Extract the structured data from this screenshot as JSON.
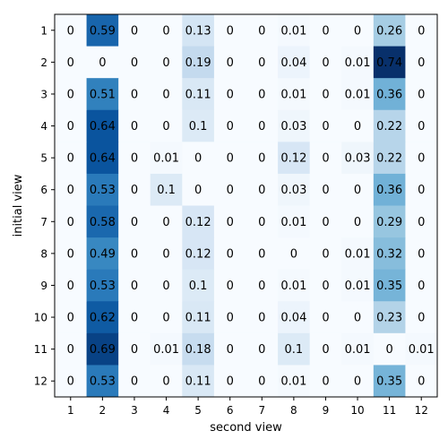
{
  "chart_data": {
    "type": "heatmap",
    "title": "",
    "xlabel": "second view",
    "ylabel": "initial view",
    "x_categories": [
      "1",
      "2",
      "3",
      "4",
      "5",
      "6",
      "7",
      "8",
      "9",
      "10",
      "11",
      "12"
    ],
    "y_categories": [
      "1",
      "2",
      "3",
      "4",
      "5",
      "6",
      "7",
      "8",
      "9",
      "10",
      "11",
      "12"
    ],
    "color_range": [
      0,
      0.74
    ],
    "colormap": [
      "#f7fbff",
      "#deebf7",
      "#c6dbef",
      "#9ecae1",
      "#6baed6",
      "#4292c6",
      "#2171b5",
      "#08519c",
      "#08306b"
    ],
    "values": [
      [
        0.0,
        0.59,
        0.0,
        0.0,
        0.13,
        0.0,
        0.0,
        0.01,
        0.0,
        0.0,
        0.26,
        0.0
      ],
      [
        0.0,
        0.0,
        0.0,
        0.0,
        0.19,
        0.0,
        0.0,
        0.04,
        0.0,
        0.01,
        0.74,
        0.0
      ],
      [
        0.0,
        0.51,
        0.0,
        0.0,
        0.11,
        0.0,
        0.0,
        0.01,
        0.0,
        0.01,
        0.36,
        0.0
      ],
      [
        0.0,
        0.64,
        0.0,
        0.0,
        0.1,
        0.0,
        0.0,
        0.03,
        0.0,
        0.0,
        0.22,
        0.0
      ],
      [
        0.0,
        0.64,
        0.0,
        0.01,
        0.0,
        0.0,
        0.0,
        0.12,
        0.0,
        0.03,
        0.22,
        0.0
      ],
      [
        0.0,
        0.53,
        0.0,
        0.1,
        0.0,
        0.0,
        0.0,
        0.03,
        0.0,
        0.0,
        0.36,
        0.0
      ],
      [
        0.0,
        0.58,
        0.0,
        0.0,
        0.12,
        0.0,
        0.0,
        0.01,
        0.0,
        0.0,
        0.29,
        0.0
      ],
      [
        0.0,
        0.49,
        0.0,
        0.0,
        0.12,
        0.0,
        0.0,
        0.0,
        0.0,
        0.01,
        0.32,
        0.0
      ],
      [
        0.0,
        0.53,
        0.0,
        0.0,
        0.1,
        0.0,
        0.0,
        0.01,
        0.0,
        0.01,
        0.35,
        0.0
      ],
      [
        0.0,
        0.62,
        0.0,
        0.0,
        0.11,
        0.0,
        0.0,
        0.04,
        0.0,
        0.0,
        0.23,
        0.0
      ],
      [
        0.0,
        0.69,
        0.0,
        0.01,
        0.18,
        0.0,
        0.0,
        0.1,
        0.0,
        0.01,
        0.0,
        0.01
      ],
      [
        0.0,
        0.53,
        0.0,
        0.0,
        0.11,
        0.0,
        0.0,
        0.01,
        0.0,
        0.0,
        0.35,
        0.0
      ]
    ]
  }
}
